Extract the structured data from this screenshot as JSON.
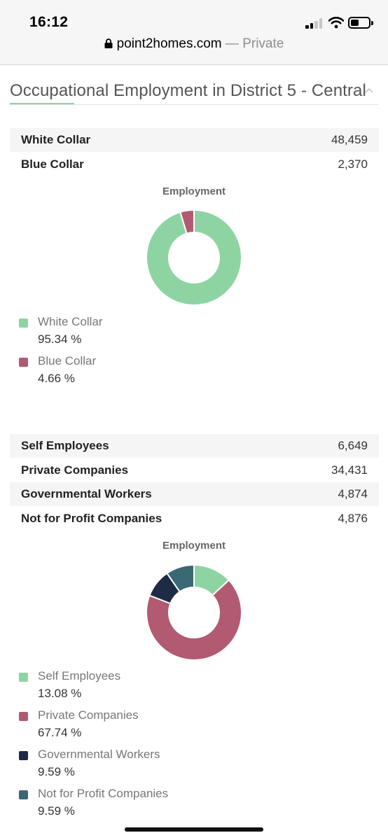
{
  "status_bar": {
    "time": "16:12"
  },
  "address_bar": {
    "domain": "point2homes.com",
    "separator": " — ",
    "mode": "Private"
  },
  "section": {
    "title": "Occupational Employment in District 5 - Central"
  },
  "collar_table": [
    {
      "label": "White Collar",
      "value": "48,459"
    },
    {
      "label": "Blue Collar",
      "value": "2,370"
    }
  ],
  "sector_table": [
    {
      "label": "Self Employees",
      "value": "6,649"
    },
    {
      "label": "Private Companies",
      "value": "34,431"
    },
    {
      "label": "Governmental Workers",
      "value": "4,874"
    },
    {
      "label": "Not for Profit Companies",
      "value": "4,876"
    }
  ],
  "chart_data": [
    {
      "type": "pie",
      "title": "Employment",
      "categories": [
        "White Collar",
        "Blue Collar"
      ],
      "values": [
        95.34,
        4.66
      ],
      "labels": [
        "95.34 %",
        "4.66 %"
      ],
      "colors": [
        "#8ed4a3",
        "#b15a72"
      ],
      "legend_position": "bottom"
    },
    {
      "type": "pie",
      "title": "Employment",
      "categories": [
        "Self Employees",
        "Private Companies",
        "Governmental Workers",
        "Not for Profit Companies"
      ],
      "values": [
        13.08,
        67.74,
        9.59,
        9.59
      ],
      "labels": [
        "13.08 %",
        "67.74 %",
        "9.59 %",
        "9.59 %"
      ],
      "colors": [
        "#8ed4a3",
        "#b15a72",
        "#1e2b45",
        "#3a6873"
      ],
      "legend_position": "bottom"
    }
  ]
}
